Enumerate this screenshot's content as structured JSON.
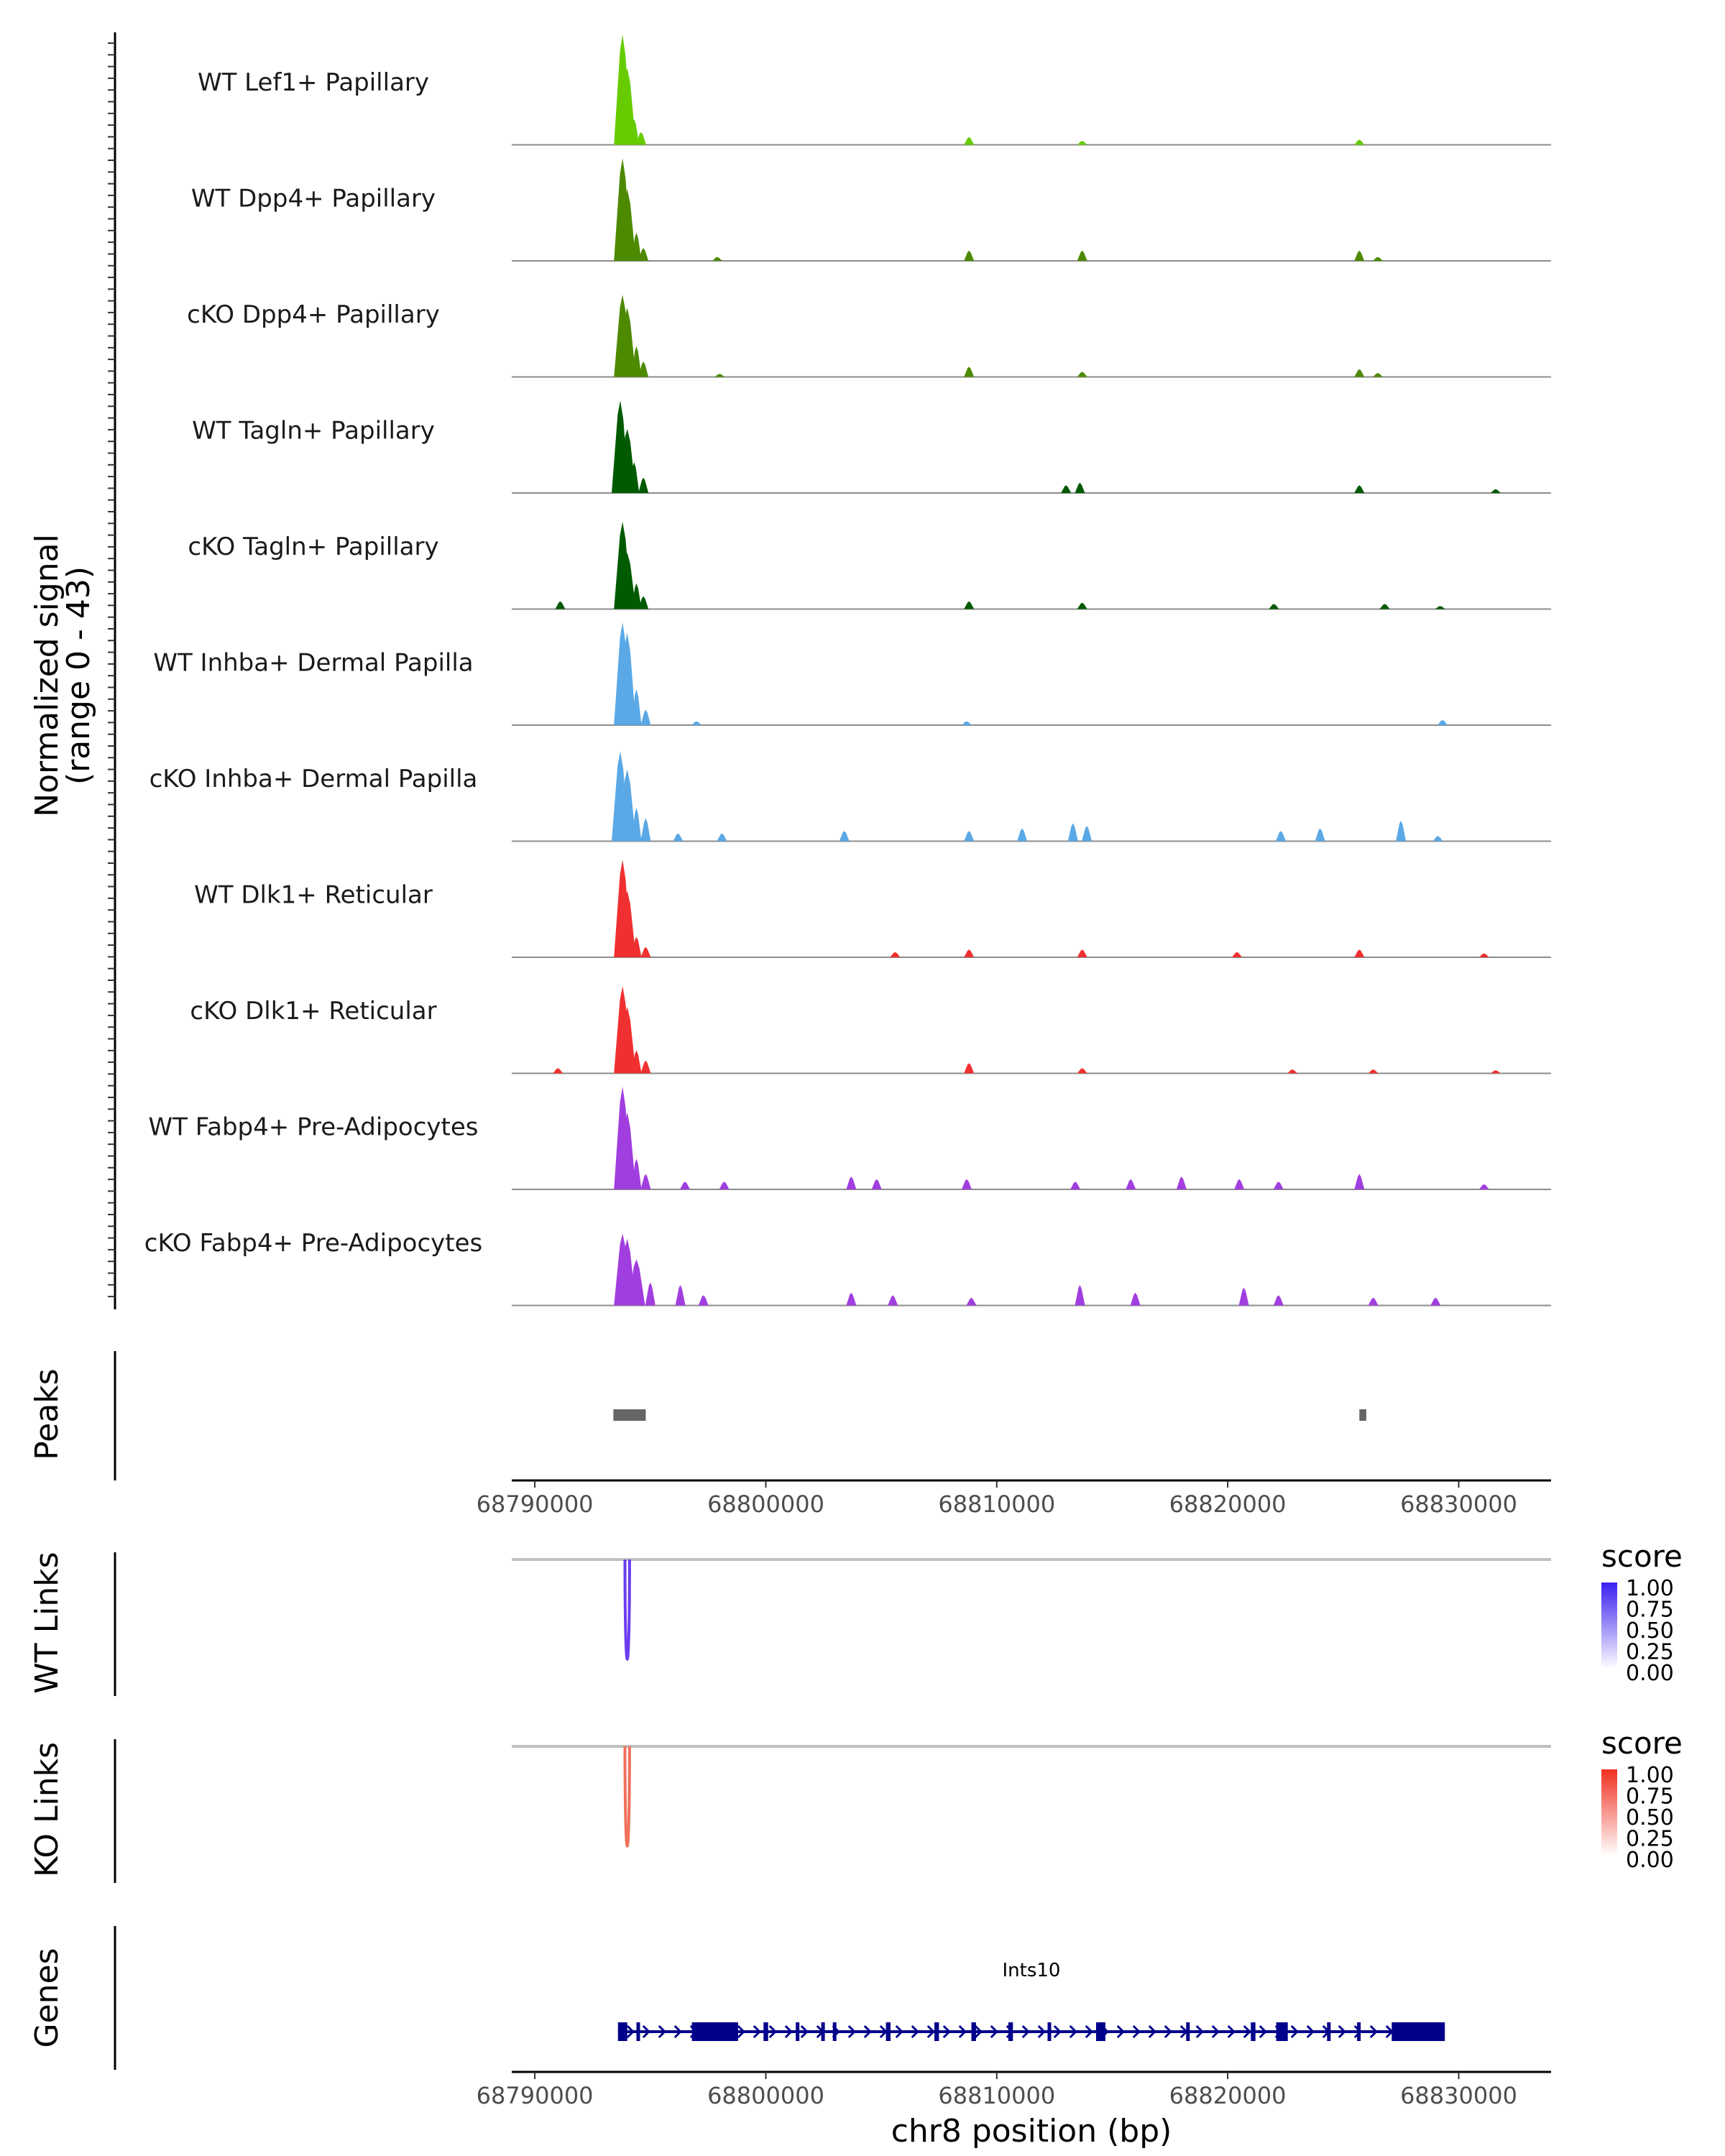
{
  "chart_data": {
    "type": "coverage",
    "chromosome": "chr8",
    "xlabel": "chr8 position (bp)",
    "xlim": [
      68789000,
      68834000
    ],
    "xticks": [
      68790000,
      68800000,
      68810000,
      68820000,
      68830000
    ],
    "xtick_labels": [
      "68790000",
      "68800000",
      "68810000",
      "68820000",
      "68830000"
    ],
    "coverage_ylabel_line1": "Normalized signal",
    "coverage_ylabel_line2": "(range 0 - 43)",
    "y_range": [
      0,
      43
    ],
    "tracks": [
      {
        "name": "WT Lef1+ Papillary",
        "color": "#66cc00",
        "peaks": [
          [
            68793800,
            43
          ],
          [
            68794000,
            30
          ],
          [
            68794300,
            10
          ],
          [
            68794600,
            5
          ],
          [
            68808800,
            3
          ],
          [
            68813700,
            1.5
          ],
          [
            68825700,
            2
          ]
        ]
      },
      {
        "name": "WT Dpp4+ Papillary",
        "color": "#4d8a00",
        "peaks": [
          [
            68793800,
            40
          ],
          [
            68794000,
            28
          ],
          [
            68794400,
            11
          ],
          [
            68794700,
            5
          ],
          [
            68797900,
            1.5
          ],
          [
            68808800,
            4
          ],
          [
            68813700,
            4
          ],
          [
            68825700,
            4
          ],
          [
            68826500,
            1.5
          ]
        ]
      },
      {
        "name": "cKO Dpp4+ Papillary",
        "color": "#4d8a00",
        "peaks": [
          [
            68793800,
            32
          ],
          [
            68794000,
            27
          ],
          [
            68794400,
            12
          ],
          [
            68794700,
            6
          ],
          [
            68798000,
            1.2
          ],
          [
            68808800,
            4
          ],
          [
            68813700,
            2
          ],
          [
            68825700,
            3
          ],
          [
            68826500,
            1.5
          ]
        ]
      },
      {
        "name": "WT Tagln+ Papillary",
        "color": "#005a00",
        "peaks": [
          [
            68793700,
            36
          ],
          [
            68794000,
            25
          ],
          [
            68794300,
            12
          ],
          [
            68794700,
            6
          ],
          [
            68813000,
            3
          ],
          [
            68813600,
            4
          ],
          [
            68825700,
            3
          ],
          [
            68831600,
            1.5
          ]
        ]
      },
      {
        "name": "cKO Tagln+ Papillary",
        "color": "#005a00",
        "peaks": [
          [
            68791100,
            3
          ],
          [
            68793800,
            34
          ],
          [
            68794000,
            22
          ],
          [
            68794400,
            10
          ],
          [
            68794700,
            5
          ],
          [
            68808800,
            3
          ],
          [
            68813700,
            2.5
          ],
          [
            68822000,
            2
          ],
          [
            68826800,
            2
          ],
          [
            68829200,
            1.2
          ]
        ]
      },
      {
        "name": "WT Inhba+ Dermal Papilla",
        "color": "#5aa8e6",
        "peaks": [
          [
            68793800,
            40
          ],
          [
            68794000,
            36
          ],
          [
            68794400,
            14
          ],
          [
            68794800,
            6
          ],
          [
            68797000,
            1.5
          ],
          [
            68808700,
            1.5
          ],
          [
            68829300,
            2
          ]
        ]
      },
      {
        "name": "cKO Inhba+ Dermal Papilla",
        "color": "#5aa8e6",
        "peaks": [
          [
            68793700,
            35
          ],
          [
            68794000,
            28
          ],
          [
            68794400,
            13
          ],
          [
            68794800,
            9
          ],
          [
            68796200,
            3
          ],
          [
            68798100,
            3
          ],
          [
            68803400,
            4
          ],
          [
            68808800,
            4
          ],
          [
            68811100,
            5
          ],
          [
            68813300,
            7
          ],
          [
            68813900,
            6
          ],
          [
            68822300,
            4
          ],
          [
            68824000,
            5
          ],
          [
            68827500,
            8
          ],
          [
            68829100,
            2
          ]
        ]
      },
      {
        "name": "WT Dlk1+ Reticular",
        "color": "#f03030",
        "peaks": [
          [
            68793800,
            38
          ],
          [
            68794000,
            26
          ],
          [
            68794400,
            8
          ],
          [
            68794800,
            4
          ],
          [
            68805600,
            2
          ],
          [
            68808800,
            3
          ],
          [
            68813700,
            3
          ],
          [
            68820400,
            2
          ],
          [
            68825700,
            3
          ],
          [
            68831100,
            1.5
          ]
        ]
      },
      {
        "name": "cKO Dlk1+ Reticular",
        "color": "#f03030",
        "peaks": [
          [
            68791000,
            2
          ],
          [
            68793800,
            34
          ],
          [
            68794000,
            26
          ],
          [
            68794400,
            9
          ],
          [
            68794800,
            5
          ],
          [
            68808800,
            4
          ],
          [
            68813700,
            2
          ],
          [
            68822800,
            1.5
          ],
          [
            68826300,
            1.5
          ],
          [
            68831600,
            1.2
          ]
        ]
      },
      {
        "name": "WT Fabp4+ Pre-Adipocytes",
        "color": "#a13ee0",
        "peaks": [
          [
            68793800,
            40
          ],
          [
            68794000,
            30
          ],
          [
            68794400,
            12
          ],
          [
            68794800,
            6
          ],
          [
            68796500,
            3
          ],
          [
            68798200,
            3
          ],
          [
            68803700,
            5
          ],
          [
            68804800,
            4
          ],
          [
            68808700,
            4
          ],
          [
            68813400,
            3
          ],
          [
            68815800,
            4
          ],
          [
            68818000,
            5
          ],
          [
            68820500,
            4
          ],
          [
            68822200,
            3
          ],
          [
            68825700,
            6
          ],
          [
            68831100,
            2
          ]
        ]
      },
      {
        "name": "cKO Fabp4+ Pre-Adipocytes",
        "color": "#a13ee0",
        "peaks": [
          [
            68793800,
            28
          ],
          [
            68794000,
            26
          ],
          [
            68794400,
            18
          ],
          [
            68795000,
            9
          ],
          [
            68796300,
            8
          ],
          [
            68797300,
            4
          ],
          [
            68803700,
            5
          ],
          [
            68805500,
            4
          ],
          [
            68808900,
            3
          ],
          [
            68813600,
            8
          ],
          [
            68816000,
            5
          ],
          [
            68820700,
            7
          ],
          [
            68822200,
            4
          ],
          [
            68826300,
            3
          ],
          [
            68829000,
            3
          ]
        ]
      }
    ],
    "peaks_track": {
      "label": "Peaks",
      "color": "#666666",
      "regions": [
        [
          68793400,
          68794800
        ],
        [
          68825700,
          68826000
        ]
      ]
    },
    "links": [
      {
        "label": "WT Links",
        "start": 68793900,
        "end": 68794100,
        "color": "#6a3df0",
        "legend": {
          "title": "score",
          "ticks": [
            "1.00",
            "0.75",
            "0.50",
            "0.25",
            "0.00"
          ],
          "high_color": "#3a1ff0",
          "low_color": "#ffffff"
        }
      },
      {
        "label": "KO Links",
        "start": 68793900,
        "end": 68794100,
        "color": "#f0705a",
        "legend": {
          "title": "score",
          "ticks": [
            "1.00",
            "0.75",
            "0.50",
            "0.25",
            "0.00"
          ],
          "high_color": "#f03020",
          "low_color": "#ffffff"
        }
      }
    ],
    "genes": {
      "label": "Genes",
      "gene_name": "Ints10",
      "strand": "+",
      "color": "#00008b",
      "start": 68793600,
      "end": 68829400,
      "exons": [
        [
          68793600,
          68794000
        ],
        [
          68794400,
          68794500
        ],
        [
          68796800,
          68798800
        ],
        [
          68799900,
          68800100
        ],
        [
          68801300,
          68801400
        ],
        [
          68802400,
          68802500
        ],
        [
          68802900,
          68803000
        ],
        [
          68805200,
          68805400
        ],
        [
          68807300,
          68807500
        ],
        [
          68808900,
          68809100
        ],
        [
          68810500,
          68810700
        ],
        [
          68812200,
          68812300
        ],
        [
          68814300,
          68814700
        ],
        [
          68818200,
          68818300
        ],
        [
          68821000,
          68821200
        ],
        [
          68822100,
          68822600
        ],
        [
          68824300,
          68824400
        ],
        [
          68825600,
          68825700
        ],
        [
          68827100,
          68829400
        ]
      ]
    }
  }
}
